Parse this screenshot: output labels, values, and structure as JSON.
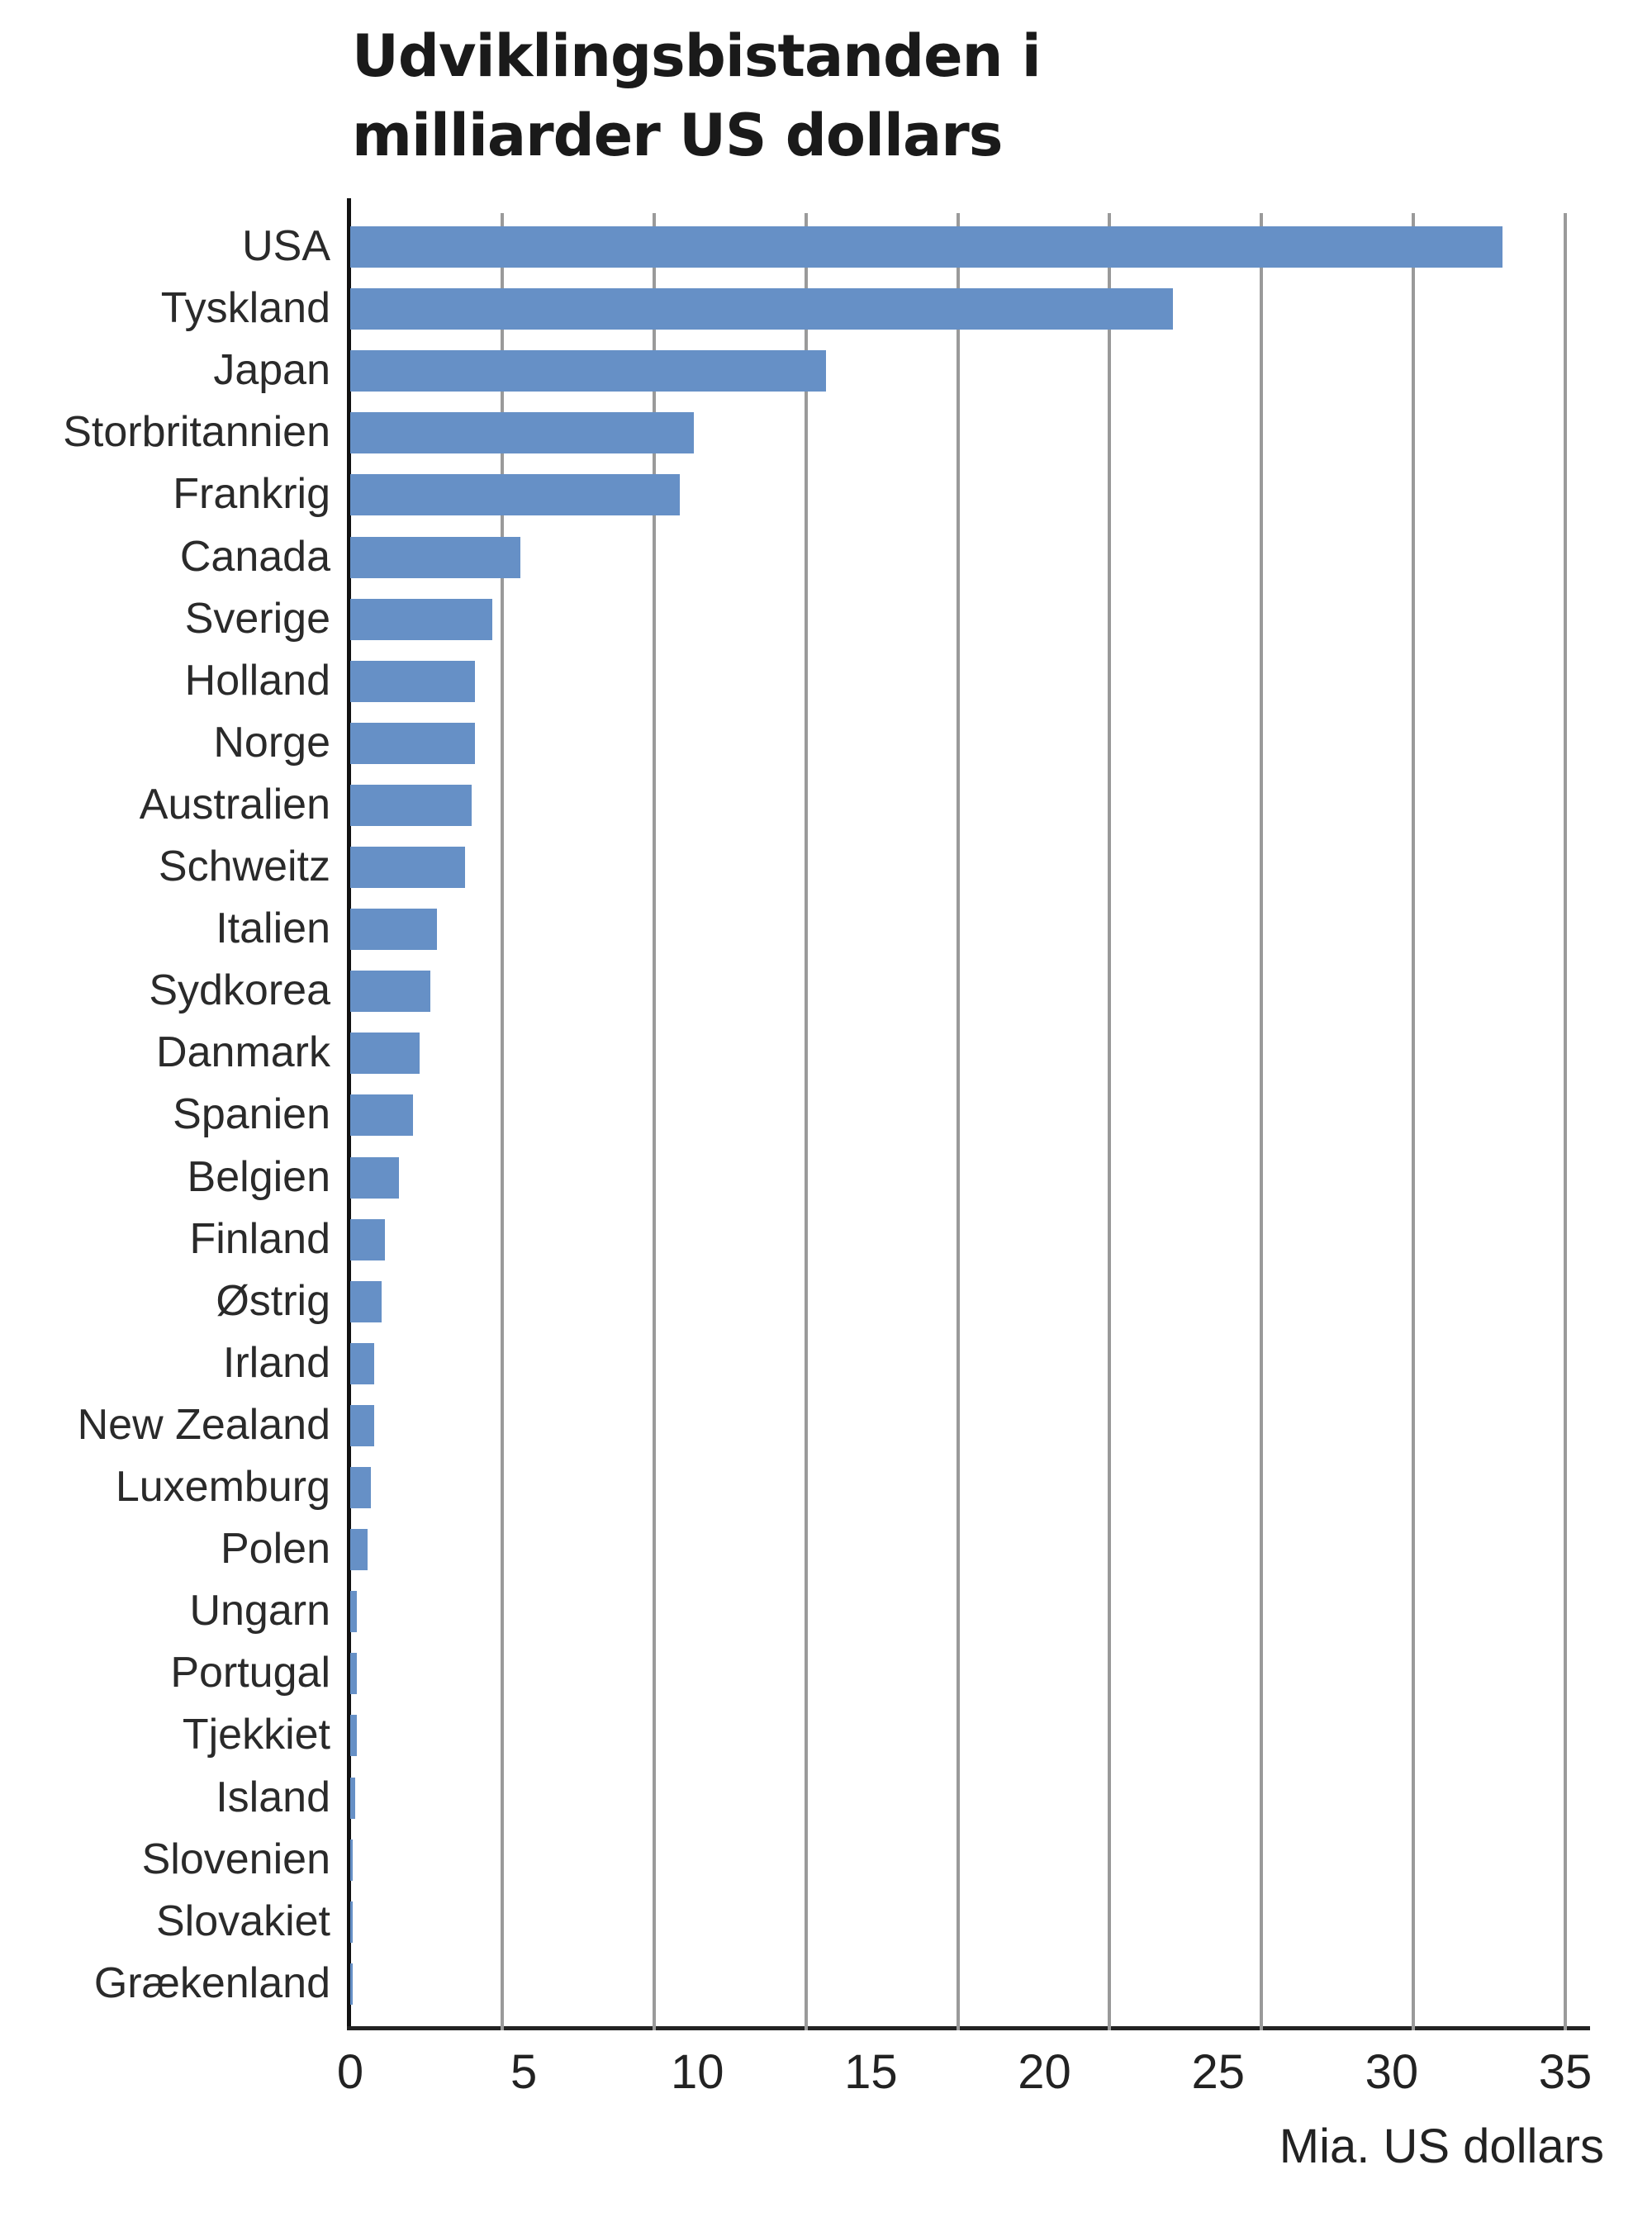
{
  "title": "Udviklingsbistanden i milliarder US dollars",
  "title_lines": [
    "Udviklingsbistanden i",
    "milliarder US dollars"
  ],
  "colors": {
    "bar": "#6690c6",
    "grid": "#9a9a9a",
    "axis": "#111111",
    "text": "#2a2a2a"
  },
  "chart_data": {
    "type": "bar",
    "orientation": "horizontal",
    "title": "Udviklingsbistanden i milliarder US dollars",
    "xlabel": "Mia. US dollars",
    "ylabel": "",
    "xlim": [
      0,
      35
    ],
    "xticks": [
      0,
      5,
      10,
      15,
      20,
      25,
      30,
      35
    ],
    "grid": true,
    "legend": null,
    "categories": [
      "USA",
      "Tyskland",
      "Japan",
      "Storbritannien",
      "Frankrig",
      "Canada",
      "Sverige",
      "Holland",
      "Norge",
      "Australien",
      "Schweitz",
      "Italien",
      "Sydkorea",
      "Danmark",
      "Spanien",
      "Belgien",
      "Finland",
      "Østrig",
      "Irland",
      "New Zealand",
      "Luxemburg",
      "Polen",
      "Ungarn",
      "Portugal",
      "Tjekkiet",
      "Island",
      "Slovenien",
      "Slovakiet",
      "Grækenland"
    ],
    "values": [
      33.2,
      23.7,
      13.7,
      9.9,
      9.5,
      4.9,
      4.1,
      3.6,
      3.6,
      3.5,
      3.3,
      2.5,
      2.3,
      2.0,
      1.8,
      1.4,
      1.0,
      0.9,
      0.7,
      0.7,
      0.6,
      0.5,
      0.2,
      0.2,
      0.2,
      0.15,
      0.05,
      0.05,
      0.05
    ]
  }
}
